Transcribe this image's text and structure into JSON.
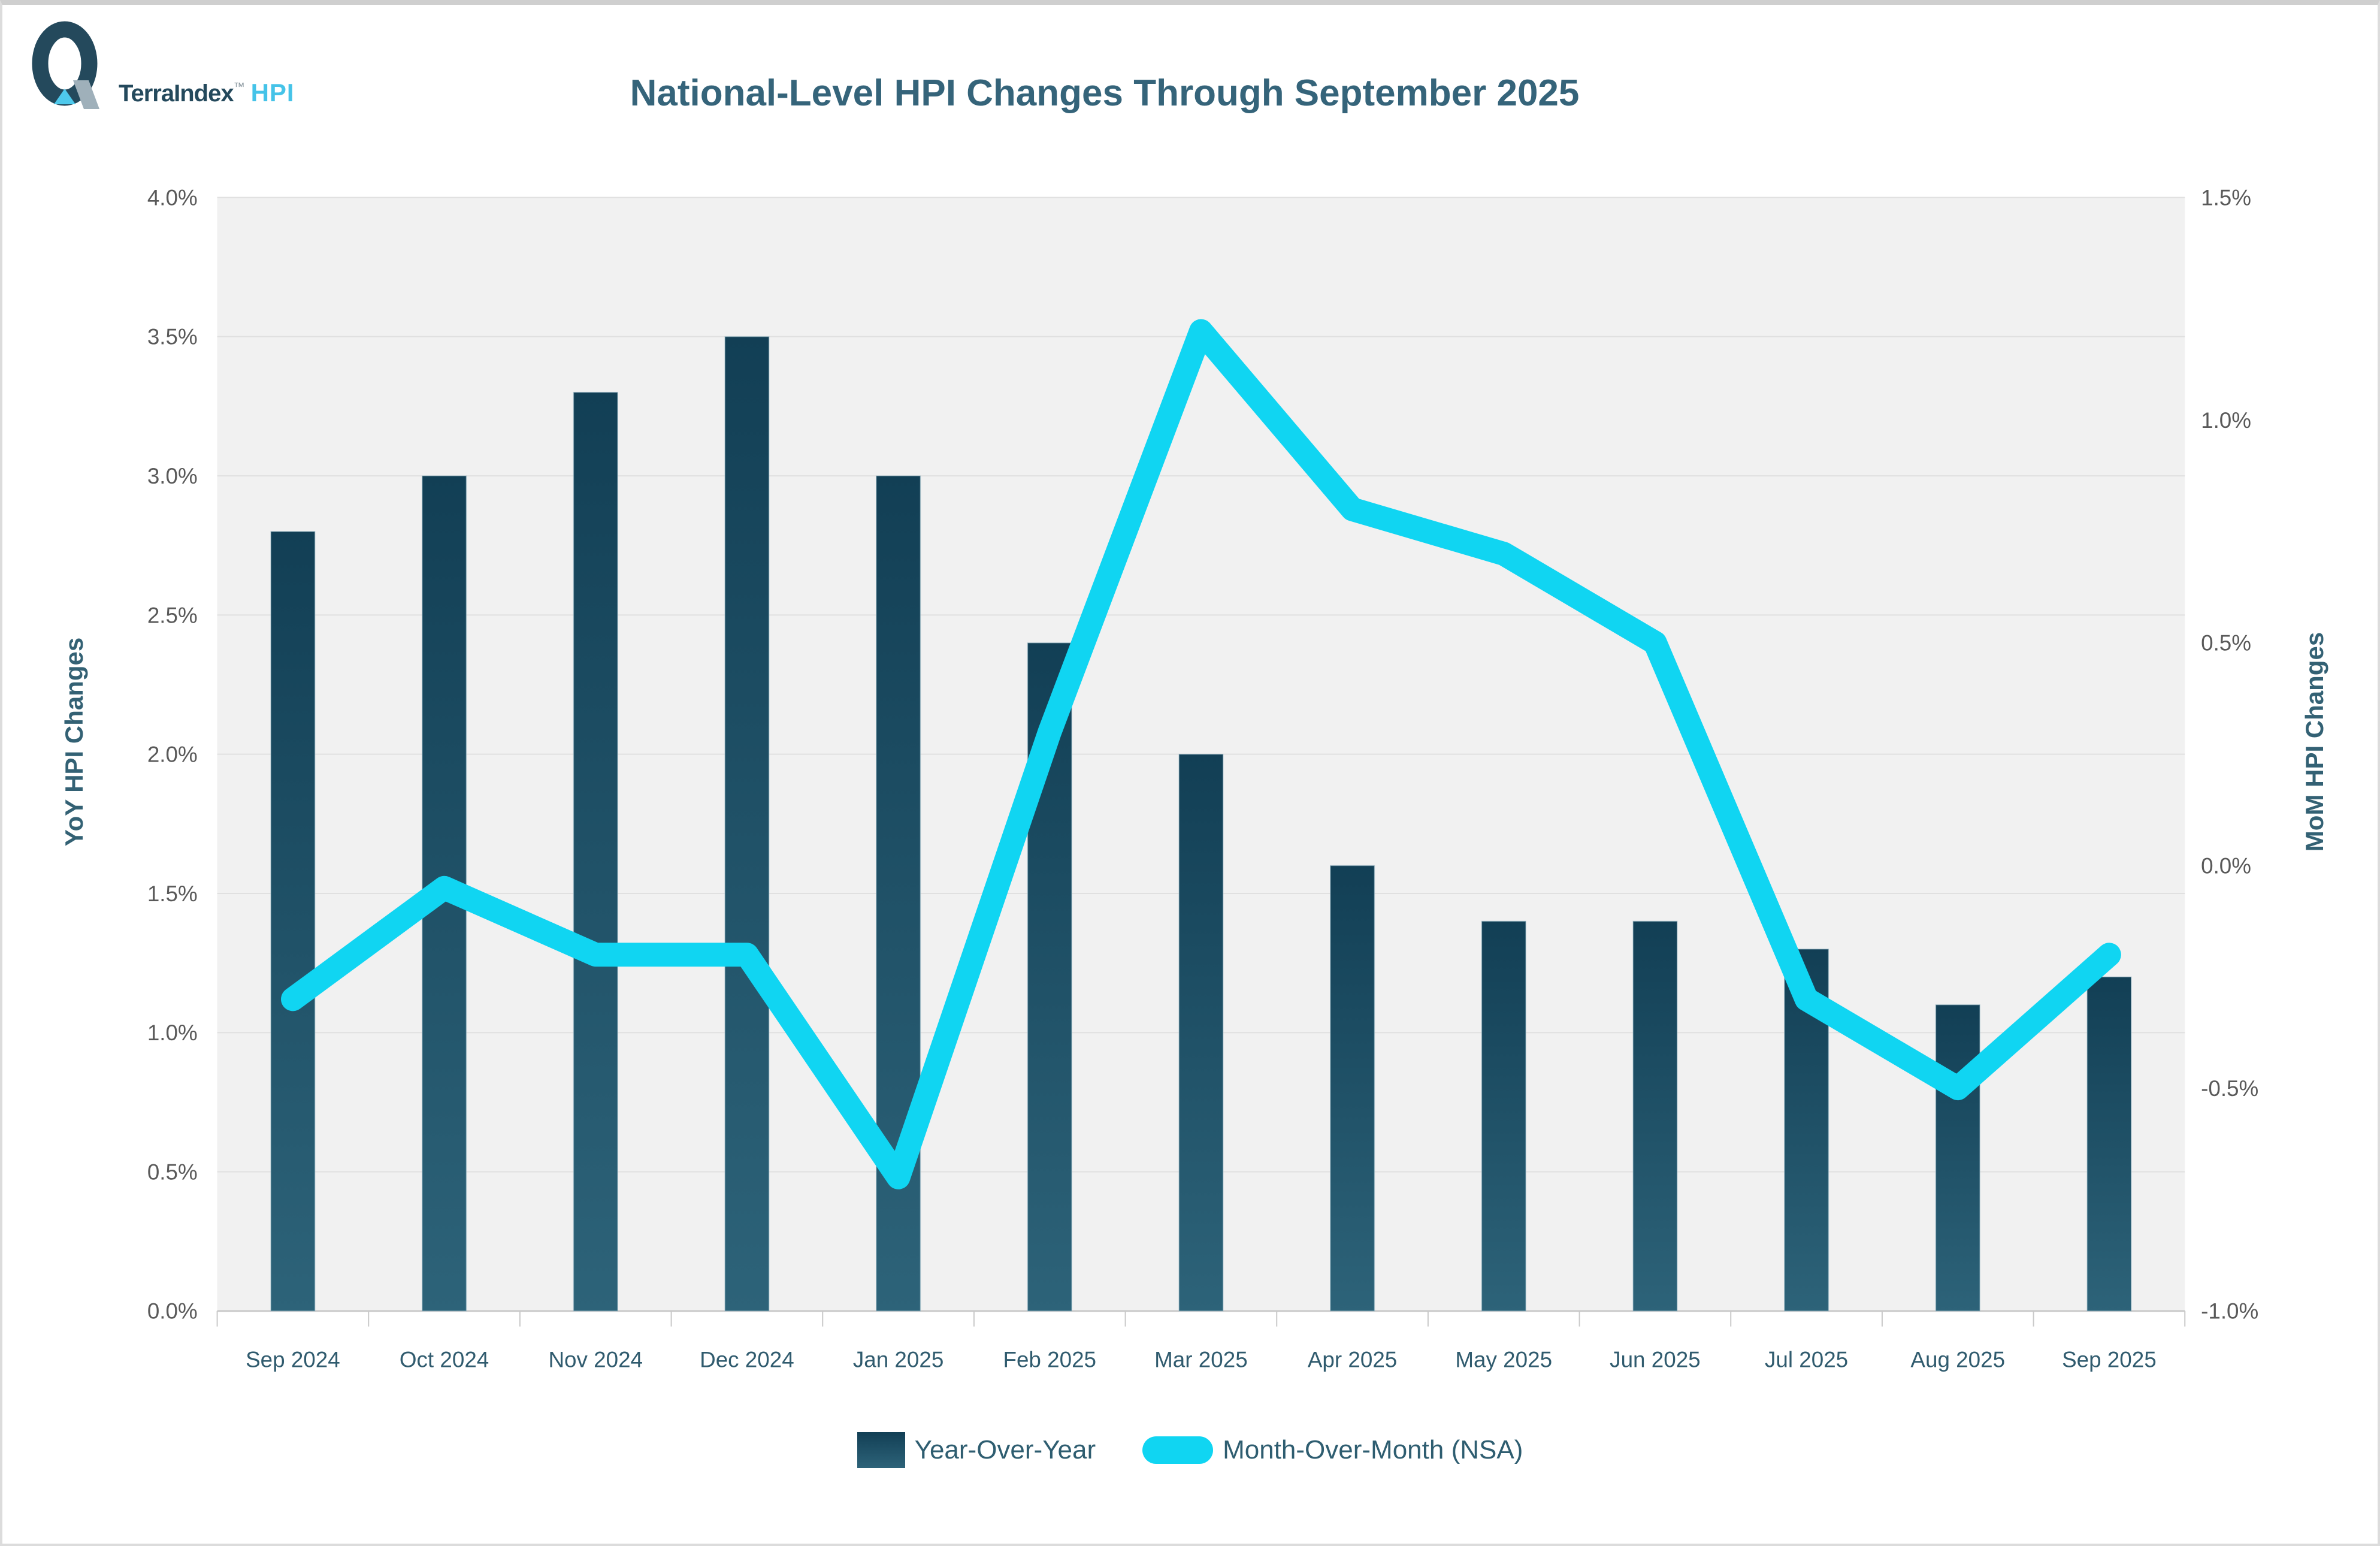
{
  "logo": {
    "brand": "TerraIndex",
    "tm": "™",
    "product": "HPI"
  },
  "header": {
    "title": "National-Level HPI Changes Through September 2025"
  },
  "chart_data": {
    "type": "bar",
    "title": "National-Level HPI Changes Through September 2025",
    "categories": [
      "Sep 2024",
      "Oct 2024",
      "Nov 2024",
      "Dec 2024",
      "Jan 2025",
      "Feb 2025",
      "Mar 2025",
      "Apr 2025",
      "May 2025",
      "Jun 2025",
      "Jul 2025",
      "Aug 2025",
      "Sep 2025"
    ],
    "series": [
      {
        "name": "Year-Over-Year",
        "type": "bar",
        "axis": "left",
        "values": [
          2.8,
          3.0,
          3.3,
          3.5,
          3.0,
          2.4,
          2.0,
          1.6,
          1.4,
          1.4,
          1.3,
          1.1,
          1.2
        ]
      },
      {
        "name": "Month-Over-Month (NSA)",
        "type": "line",
        "axis": "right",
        "values": [
          -0.3,
          -0.05,
          -0.2,
          -0.2,
          -0.7,
          0.3,
          1.2,
          0.8,
          0.7,
          0.5,
          -0.3,
          -0.5,
          -0.2
        ]
      }
    ],
    "left_axis": {
      "label": "YoY HPI Changes",
      "min": 0,
      "max": 4,
      "tick_labels": [
        "4.0%",
        "3.5%",
        "3.0%",
        "2.5%",
        "2.0%",
        "1.5%",
        "1.0%",
        "0.5%",
        "0.0%"
      ]
    },
    "right_axis": {
      "label": "MoM HPI Changes",
      "min": -1.0,
      "max": 1.5,
      "tick_labels": [
        "1.5%",
        "1.0%",
        "0.5%",
        "0.0%",
        "-0.5%",
        "-1.0%"
      ]
    },
    "grid": true,
    "legend_position": "bottom"
  },
  "colors": {
    "bar_top": "#123f55",
    "bar_bottom": "#2d6379",
    "bar_edge": "#9dbcc9",
    "line": "#10d5f2",
    "plot_bg": "#f1f1f1",
    "gridline": "#e0e0e0",
    "axis_line": "#c9c9c9",
    "tick_text": "#595959",
    "month_text": "#305b6e",
    "teal_text": "#336174",
    "title_text": "#35647a",
    "logo_navy": "#24495c",
    "logo_gray": "#9fb0ba",
    "logo_cyan": "#4ec9ec"
  }
}
